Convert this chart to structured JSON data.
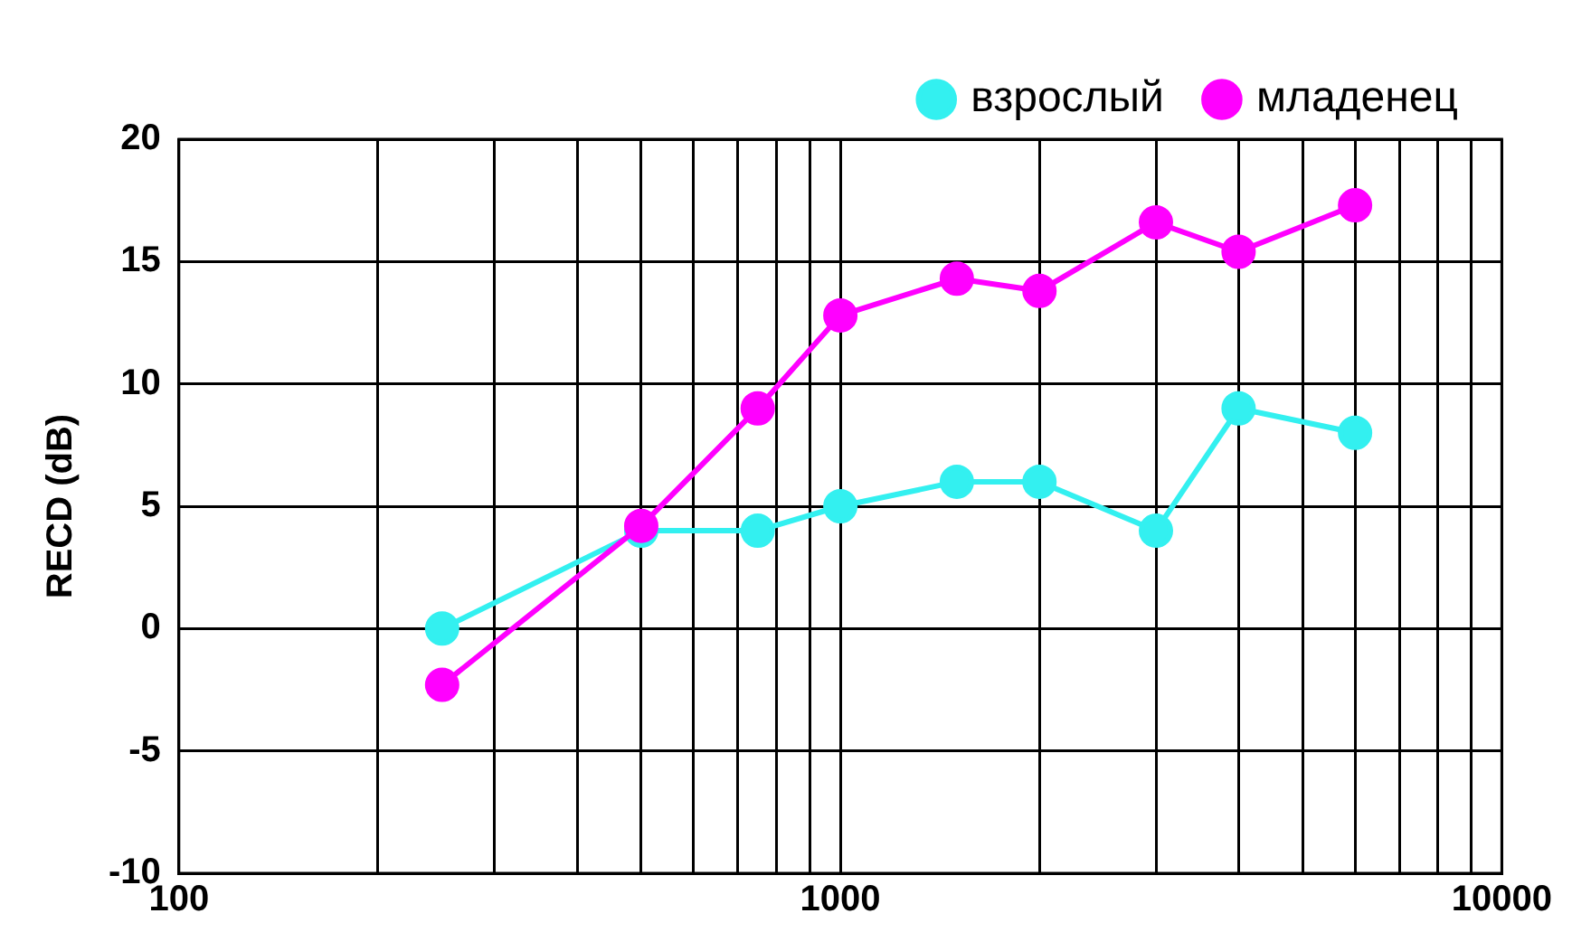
{
  "chart_data": {
    "type": "line",
    "ylabel": "RECD (dB)",
    "x": [
      250,
      500,
      750,
      1000,
      1500,
      2000,
      3000,
      4000,
      6000
    ],
    "series": [
      {
        "name": "взрослый",
        "color": "#33f0f0",
        "values": [
          0,
          4,
          4,
          5,
          6,
          6,
          4,
          9,
          8
        ]
      },
      {
        "name": "младенец",
        "color": "#ff00ff",
        "values": [
          -2.3,
          4.2,
          9,
          12.8,
          14.3,
          13.8,
          16.6,
          15.4,
          17.3
        ]
      }
    ],
    "log": "x",
    "xlim": [
      100,
      10000
    ],
    "xticks": [
      100,
      {
        "value": 200,
        "label": null
      },
      {
        "value": 300,
        "label": null
      },
      {
        "value": 400,
        "label": null
      },
      {
        "value": 500,
        "label": null
      },
      {
        "value": 600,
        "label": null
      },
      {
        "value": 700,
        "label": null
      },
      {
        "value": 800,
        "label": null
      },
      {
        "value": 900,
        "label": null
      },
      1000,
      {
        "value": 2000,
        "label": null
      },
      {
        "value": 3000,
        "label": null
      },
      {
        "value": 4000,
        "label": null
      },
      {
        "value": 5000,
        "label": null
      },
      {
        "value": 6000,
        "label": null
      },
      {
        "value": 7000,
        "label": null
      },
      {
        "value": 8000,
        "label": null
      },
      {
        "value": 9000,
        "label": null
      },
      10000
    ],
    "ylim": [
      -10,
      20
    ],
    "yticks": [
      -10,
      -5,
      0,
      5,
      10,
      15,
      20
    ],
    "grid": true,
    "legend": "top right",
    "marker": "circle",
    "line_style": "solid"
  }
}
